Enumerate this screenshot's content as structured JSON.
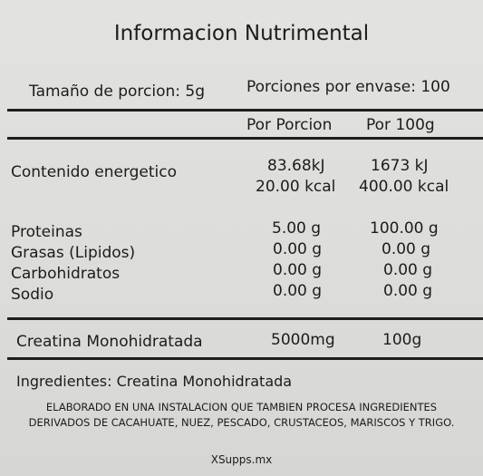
{
  "title": "Informacion Nutrimental",
  "serving_size": "Tamaño de porcion: 5g",
  "servings_per_container": "Porciones por envase: 100",
  "columns": {
    "per_serving": "Por Porcion",
    "per_100g": "Por 100g"
  },
  "energy": {
    "label": "Contenido energetico",
    "per_serving_kj": "83.68kJ",
    "per_serving_kcal": "20.00 kcal",
    "per_100g_kj": "1673 kJ",
    "per_100g_kcal": "400.00 kcal"
  },
  "nutrients": [
    {
      "label": "Proteinas",
      "per_serving": "5.00 g",
      "per_100g": "100.00 g"
    },
    {
      "label": "Grasas (Lipidos)",
      "per_serving": "0.00 g",
      "per_100g": "0.00 g"
    },
    {
      "label": "Carbohidratos",
      "per_serving": "0.00 g",
      "per_100g": "0.00 g"
    },
    {
      "label": "Sodio",
      "per_serving": "0.00 g",
      "per_100g": "0.00 g"
    }
  ],
  "active": {
    "label": "Creatina Monohidratada",
    "per_serving": "5000mg",
    "per_100g": "100g"
  },
  "ingredients": "Ingredientes: Creatina Monohidratada",
  "disclaimer": {
    "line1": "ELABORADO EN UNA INSTALACION QUE TAMBIEN PROCESA INGREDIENTES",
    "line2": "DERIVADOS DE CACAHUATE, NUEZ, PESCADO, CRUSTACEOS, MARISCOS Y TRIGO."
  },
  "website": "XSupps.mx"
}
